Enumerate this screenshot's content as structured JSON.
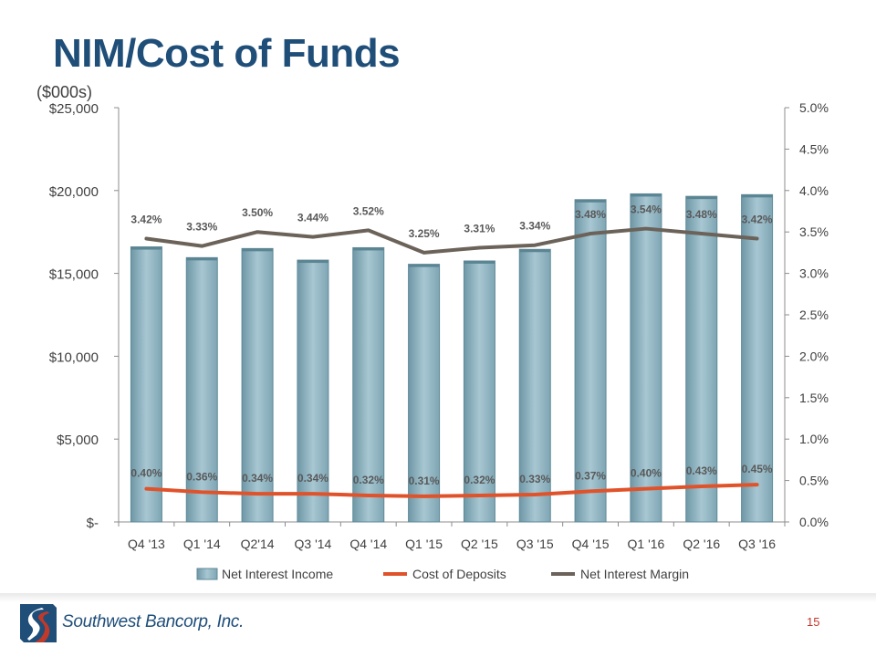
{
  "slide": {
    "title": "NIM/Cost of Funds",
    "page_number": "15",
    "company": "Southwest Bancorp, Inc."
  },
  "chart_data": {
    "type": "bar",
    "unit_label": "($000s)",
    "categories": [
      "Q4 '13",
      "Q1 '14",
      "Q2'14",
      "Q3 '14",
      "Q4 '14",
      "Q1 '15",
      "Q2 '15",
      "Q3 '15",
      "Q4 '15",
      "Q1 '16",
      "Q2 '16",
      "Q3 '16"
    ],
    "series": [
      {
        "name": "Net Interest Income",
        "type": "bar",
        "axis": "left",
        "color": "#8fb4c1",
        "values": [
          16600,
          15950,
          16500,
          15800,
          16550,
          15550,
          15750,
          16450,
          19450,
          19800,
          19650,
          19750
        ]
      },
      {
        "name": "Cost of Deposits",
        "type": "line",
        "axis": "right",
        "color": "#e0522a",
        "values": [
          0.4,
          0.36,
          0.34,
          0.34,
          0.32,
          0.31,
          0.32,
          0.33,
          0.37,
          0.4,
          0.43,
          0.45
        ],
        "labels": [
          "0.40%",
          "0.36%",
          "0.34%",
          "0.34%",
          "0.32%",
          "0.31%",
          "0.32%",
          "0.33%",
          "0.37%",
          "0.40%",
          "0.43%",
          "0.45%"
        ]
      },
      {
        "name": "Net Interest Margin",
        "type": "line",
        "axis": "right",
        "color": "#6b6259",
        "values": [
          3.42,
          3.33,
          3.5,
          3.44,
          3.52,
          3.25,
          3.31,
          3.34,
          3.48,
          3.54,
          3.48,
          3.42
        ],
        "labels": [
          "3.42%",
          "3.33%",
          "3.50%",
          "3.44%",
          "3.52%",
          "3.25%",
          "3.31%",
          "3.34%",
          "3.48%",
          "3.54%",
          "3.48%",
          "3.42%"
        ]
      }
    ],
    "y_left": {
      "range": [
        0,
        25000
      ],
      "ticks": [
        0,
        5000,
        10000,
        15000,
        20000,
        25000
      ],
      "tick_labels": [
        "$-",
        "$5,000",
        "$10,000",
        "$15,000",
        "$20,000",
        "$25,000"
      ]
    },
    "y_right": {
      "range": [
        0,
        5
      ],
      "ticks": [
        0,
        0.5,
        1,
        1.5,
        2,
        2.5,
        3,
        3.5,
        4,
        4.5,
        5
      ],
      "tick_labels": [
        "0.0%",
        "0.5%",
        "1.0%",
        "1.5%",
        "2.0%",
        "2.5%",
        "3.0%",
        "3.5%",
        "4.0%",
        "4.5%",
        "5.0%"
      ]
    },
    "grid": false,
    "legend_position": "bottom"
  }
}
